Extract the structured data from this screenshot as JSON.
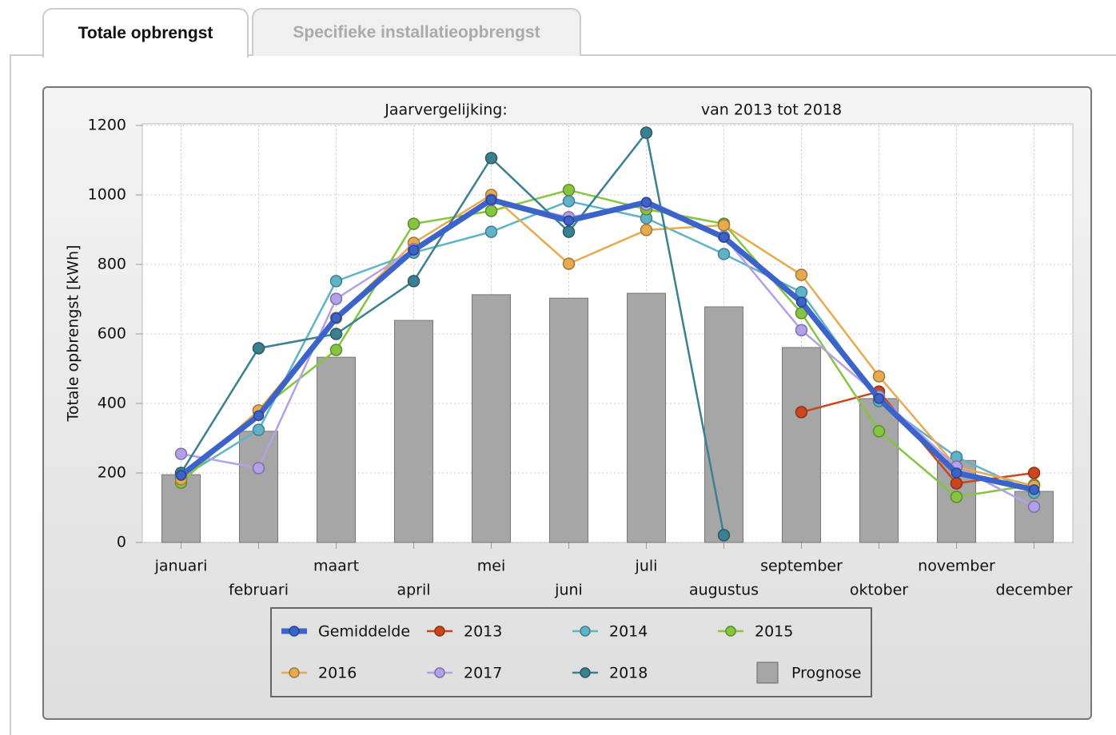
{
  "tabs": [
    "Totale opbrengst",
    "Specifieke installatieopbrengst"
  ],
  "chart_data": {
    "type": "line",
    "title": "Jaarvergelijking:",
    "subtitle": "van 2013 tot 2018",
    "y_label": "Totale opbrengst [kWh]",
    "categories": [
      "januari",
      "februari",
      "maart",
      "april",
      "mei",
      "juni",
      "juli",
      "augustus",
      "september",
      "oktober",
      "november",
      "december"
    ],
    "ylim": [
      0,
      1200
    ],
    "yticks": [
      0,
      200,
      400,
      600,
      800,
      1000,
      1200
    ],
    "grid": true,
    "series": [
      {
        "name": "Gemiddelde",
        "type": "line",
        "color": "#3b63c9",
        "values": [
          193,
          365,
          646,
          841,
          986,
          926,
          979,
          878,
          692,
          414,
          200,
          152
        ]
      },
      {
        "name": "2013",
        "type": "line",
        "color": "#c9461f",
        "values": [
          null,
          null,
          null,
          null,
          null,
          null,
          null,
          null,
          375,
          434,
          170,
          200
        ]
      },
      {
        "name": "2014",
        "type": "line",
        "color": "#5fb3c8",
        "values": [
          186,
          324,
          752,
          834,
          894,
          982,
          933,
          830,
          720,
          407,
          246,
          143
        ]
      },
      {
        "name": "2015",
        "type": "line",
        "color": "#86c540",
        "values": [
          172,
          379,
          554,
          917,
          954,
          1014,
          959,
          917,
          660,
          320,
          131,
          166
        ]
      },
      {
        "name": "2016",
        "type": "line",
        "color": "#e8aa4f",
        "values": [
          182,
          380,
          646,
          862,
          1000,
          802,
          899,
          913,
          770,
          478,
          218,
          163
        ]
      },
      {
        "name": "2017",
        "type": "line",
        "color": "#b3a0e8",
        "values": [
          255,
          214,
          701,
          844,
          986,
          936,
          972,
          880,
          611,
          421,
          218,
          103
        ]
      },
      {
        "name": "2018",
        "type": "line",
        "color": "#3a8090",
        "values": [
          200,
          559,
          600,
          752,
          1106,
          894,
          1179,
          21,
          null,
          null,
          null,
          null
        ]
      },
      {
        "name": "Prognose",
        "type": "bar",
        "color": "#a6a6a6",
        "values": [
          195,
          320,
          533,
          639,
          713,
          703,
          717,
          678,
          561,
          414,
          236,
          147
        ]
      }
    ]
  }
}
